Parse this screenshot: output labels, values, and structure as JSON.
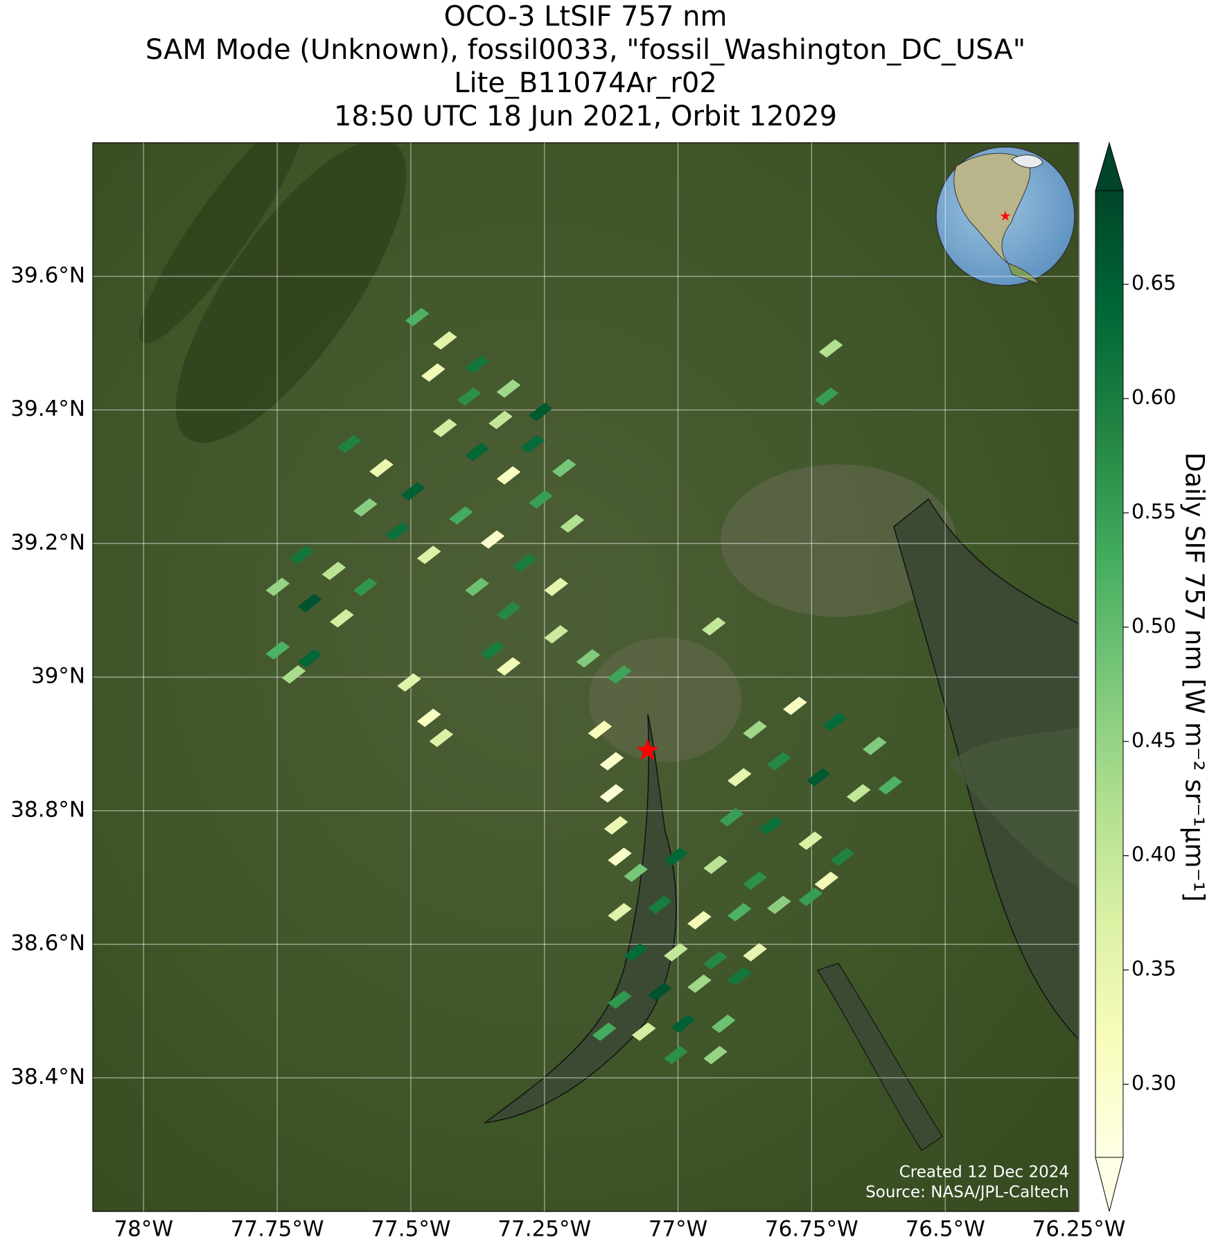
{
  "chart_data": {
    "type": "map",
    "title_lines": [
      "OCO-3 LtSIF 757 nm",
      "SAM Mode (Unknown), fossil0033, \"fossil_Washington_DC_USA\"",
      "Lite_B11074Ar_r02",
      "18:50 UTC 18 Jun 2021, Orbit 12029"
    ],
    "xlim": [
      -78.095,
      -76.25
    ],
    "ylim": [
      38.2,
      39.8
    ],
    "xticks": [
      {
        "value": -78,
        "label": "78°W"
      },
      {
        "value": -77.75,
        "label": "77.75°W"
      },
      {
        "value": -77.5,
        "label": "77.5°W"
      },
      {
        "value": -77.25,
        "label": "77.25°W"
      },
      {
        "value": -77,
        "label": "77°W"
      },
      {
        "value": -76.75,
        "label": "76.75°W"
      },
      {
        "value": -76.5,
        "label": "76.5°W"
      },
      {
        "value": -76.25,
        "label": "76.25°W"
      }
    ],
    "yticks": [
      {
        "value": 38.4,
        "label": "38.4°N"
      },
      {
        "value": 38.6,
        "label": "38.6°N"
      },
      {
        "value": 38.8,
        "label": "38.8°N"
      },
      {
        "value": 39,
        "label": "39°N"
      },
      {
        "value": 39.2,
        "label": "39.2°N"
      },
      {
        "value": 39.4,
        "label": "39.4°N"
      },
      {
        "value": 39.6,
        "label": "39.6°N"
      }
    ],
    "grid": true,
    "cells": {
      "lon": [
        -77.488,
        -77.436,
        -77.376,
        -77.317,
        -77.257,
        -77.458,
        -77.391,
        -77.332,
        -77.272,
        -77.213,
        -77.436,
        -77.376,
        -77.317,
        -77.257,
        -77.198,
        -77.615,
        -77.555,
        -77.496,
        -77.585,
        -77.525,
        -77.466,
        -77.406,
        -77.347,
        -77.287,
        -77.228,
        -77.376,
        -77.317,
        -77.228,
        -77.168,
        -77.109,
        -77.704,
        -77.644,
        -77.585,
        -77.749,
        -77.689,
        -77.629,
        -77.749,
        -77.689,
        -77.719,
        -77.347,
        -77.317,
        -77.503,
        -77.466,
        -77.443,
        -77.146,
        -77.124,
        -77.124,
        -77.116,
        -77.109,
        -76.856,
        -76.781,
        -76.707,
        -76.632,
        -76.885,
        -76.811,
        -76.737,
        -76.662,
        -76.603,
        -76.9,
        -76.826,
        -76.752,
        -76.692,
        -76.722,
        -77.079,
        -77.004,
        -76.93,
        -76.856,
        -77.109,
        -77.034,
        -76.96,
        -76.885,
        -76.811,
        -76.752,
        -77.079,
        -77.004,
        -76.93,
        -76.856,
        -77.109,
        -77.034,
        -76.96,
        -76.885,
        -77.138,
        -77.064,
        -76.99,
        -76.915,
        -77.004,
        -76.93,
        -76.714,
        -76.722,
        -76.933
      ],
      "lat": [
        39.539,
        39.504,
        39.468,
        39.432,
        39.397,
        39.456,
        39.42,
        39.385,
        39.349,
        39.313,
        39.373,
        39.337,
        39.302,
        39.266,
        39.23,
        39.349,
        39.313,
        39.278,
        39.254,
        39.218,
        39.183,
        39.242,
        39.206,
        39.171,
        39.135,
        39.135,
        39.099,
        39.064,
        39.028,
        39.004,
        39.183,
        39.159,
        39.135,
        39.135,
        39.111,
        39.088,
        39.04,
        39.028,
        39.004,
        39.04,
        39.016,
        38.992,
        38.939,
        38.909,
        38.921,
        38.874,
        38.826,
        38.778,
        38.731,
        38.921,
        38.957,
        38.933,
        38.897,
        38.85,
        38.874,
        38.85,
        38.826,
        38.838,
        38.79,
        38.778,
        38.755,
        38.731,
        38.695,
        38.707,
        38.731,
        38.719,
        38.695,
        38.648,
        38.659,
        38.636,
        38.648,
        38.659,
        38.671,
        38.588,
        38.588,
        38.576,
        38.588,
        38.517,
        38.529,
        38.541,
        38.552,
        38.469,
        38.469,
        38.481,
        38.481,
        38.434,
        38.434,
        39.492,
        39.42,
        39.076
      ],
      "sif": [
        0.52,
        0.36,
        0.61,
        0.44,
        0.66,
        0.33,
        0.57,
        0.4,
        0.63,
        0.48,
        0.38,
        0.64,
        0.31,
        0.55,
        0.42,
        0.59,
        0.34,
        0.65,
        0.46,
        0.62,
        0.37,
        0.53,
        0.3,
        0.6,
        0.35,
        0.49,
        0.58,
        0.39,
        0.47,
        0.54,
        0.61,
        0.41,
        0.56,
        0.45,
        0.67,
        0.38,
        0.52,
        0.64,
        0.43,
        0.6,
        0.33,
        0.36,
        0.31,
        0.37,
        0.32,
        0.3,
        0.29,
        0.34,
        0.3,
        0.44,
        0.31,
        0.63,
        0.47,
        0.35,
        0.58,
        0.66,
        0.4,
        0.52,
        0.55,
        0.62,
        0.37,
        0.59,
        0.33,
        0.48,
        0.64,
        0.41,
        0.57,
        0.36,
        0.6,
        0.33,
        0.52,
        0.46,
        0.55,
        0.63,
        0.4,
        0.58,
        0.35,
        0.56,
        0.67,
        0.44,
        0.61,
        0.53,
        0.38,
        0.65,
        0.49,
        0.57,
        0.45,
        0.42,
        0.55,
        0.4
      ]
    },
    "colormap": [
      "#ffffe5",
      "#f7fcb9",
      "#d9f0a3",
      "#addd8e",
      "#78c679",
      "#41ab5d",
      "#238443",
      "#006837",
      "#004529"
    ],
    "clim": [
      0.268,
      0.691
    ],
    "cbar_ticks": [
      {
        "value": 0.3,
        "label": "0.30"
      },
      {
        "value": 0.35,
        "label": "0.35"
      },
      {
        "value": 0.4,
        "label": "0.40"
      },
      {
        "value": 0.45,
        "label": "0.45"
      },
      {
        "value": 0.5,
        "label": "0.50"
      },
      {
        "value": 0.55,
        "label": "0.55"
      },
      {
        "value": 0.6,
        "label": "0.60"
      },
      {
        "value": 0.65,
        "label": "0.65"
      }
    ],
    "cbar_label": "Daily SIF 757 nm [W m⁻² sr⁻¹μm⁻¹]",
    "target": {
      "lon": -77.057,
      "lat": 38.89,
      "color": "#ff0000"
    },
    "credits": [
      "Created 12 Dec 2024",
      "Source: NASA/JPL-Caltech"
    ]
  }
}
